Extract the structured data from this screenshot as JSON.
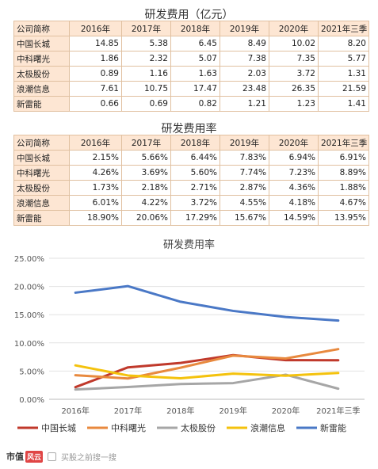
{
  "table1": {
    "title": "研发费用（亿元）",
    "header": [
      "公司简称",
      "2016年",
      "2017年",
      "2018年",
      "2019年",
      "2020年",
      "2021年三季"
    ],
    "rows": [
      {
        "company": "中国长城",
        "values": [
          "14.85",
          "5.38",
          "6.45",
          "8.49",
          "10.02",
          "8.20"
        ]
      },
      {
        "company": "中科曙光",
        "values": [
          "1.86",
          "2.32",
          "5.07",
          "7.38",
          "7.35",
          "5.77"
        ]
      },
      {
        "company": "太极股份",
        "values": [
          "0.89",
          "1.16",
          "1.63",
          "2.03",
          "3.72",
          "1.31"
        ]
      },
      {
        "company": "浪潮信息",
        "values": [
          "7.61",
          "10.75",
          "17.47",
          "23.48",
          "26.35",
          "21.59"
        ]
      },
      {
        "company": "新雷能",
        "values": [
          "0.66",
          "0.69",
          "0.82",
          "1.21",
          "1.23",
          "1.41"
        ]
      }
    ]
  },
  "table2": {
    "title": "研发费用率",
    "header": [
      "公司简称",
      "2016年",
      "2017年",
      "2018年",
      "2019年",
      "2020年",
      "2021年三季"
    ],
    "rows": [
      {
        "company": "中国长城",
        "values": [
          "2.15%",
          "5.66%",
          "6.44%",
          "7.83%",
          "6.94%",
          "6.91%"
        ]
      },
      {
        "company": "中科曙光",
        "values": [
          "4.26%",
          "3.69%",
          "5.60%",
          "7.74%",
          "7.23%",
          "8.89%"
        ]
      },
      {
        "company": "太极股份",
        "values": [
          "1.73%",
          "2.18%",
          "2.71%",
          "2.87%",
          "4.36%",
          "1.88%"
        ]
      },
      {
        "company": "浪潮信息",
        "values": [
          "6.01%",
          "4.22%",
          "3.72%",
          "4.55%",
          "4.18%",
          "4.67%"
        ]
      },
      {
        "company": "新雷能",
        "values": [
          "18.90%",
          "20.06%",
          "17.29%",
          "15.67%",
          "14.59%",
          "13.95%"
        ]
      }
    ]
  },
  "chart_data": {
    "type": "line",
    "title": "研发费用率",
    "categories": [
      "2016年",
      "2017年",
      "2018年",
      "2019年",
      "2020年",
      "2021年三季"
    ],
    "ylim": [
      0,
      25
    ],
    "yticks": [
      0,
      5,
      10,
      15,
      20,
      25
    ],
    "ytick_labels": [
      "0.00%",
      "5.00%",
      "10.00%",
      "15.00%",
      "20.00%",
      "25.00%"
    ],
    "grid": true,
    "legend_position": "bottom",
    "series": [
      {
        "name": "中国长城",
        "color": "#c0392b",
        "values": [
          2.15,
          5.66,
          6.44,
          7.83,
          6.94,
          6.91
        ]
      },
      {
        "name": "中科曙光",
        "color": "#e8893e",
        "values": [
          4.26,
          3.69,
          5.6,
          7.74,
          7.23,
          8.89
        ]
      },
      {
        "name": "太极股份",
        "color": "#a6a6a6",
        "values": [
          1.73,
          2.18,
          2.71,
          2.87,
          4.36,
          1.88
        ]
      },
      {
        "name": "浪潮信息",
        "color": "#f4c20d",
        "values": [
          6.01,
          4.22,
          3.72,
          4.55,
          4.18,
          4.67
        ]
      },
      {
        "name": "新雷能",
        "color": "#4a78c6",
        "values": [
          18.9,
          20.06,
          17.29,
          15.67,
          14.59,
          13.95
        ]
      }
    ]
  },
  "footer": {
    "brand_text": "市值",
    "brand_mark": "风云",
    "note": "买股之前搜一搜"
  }
}
